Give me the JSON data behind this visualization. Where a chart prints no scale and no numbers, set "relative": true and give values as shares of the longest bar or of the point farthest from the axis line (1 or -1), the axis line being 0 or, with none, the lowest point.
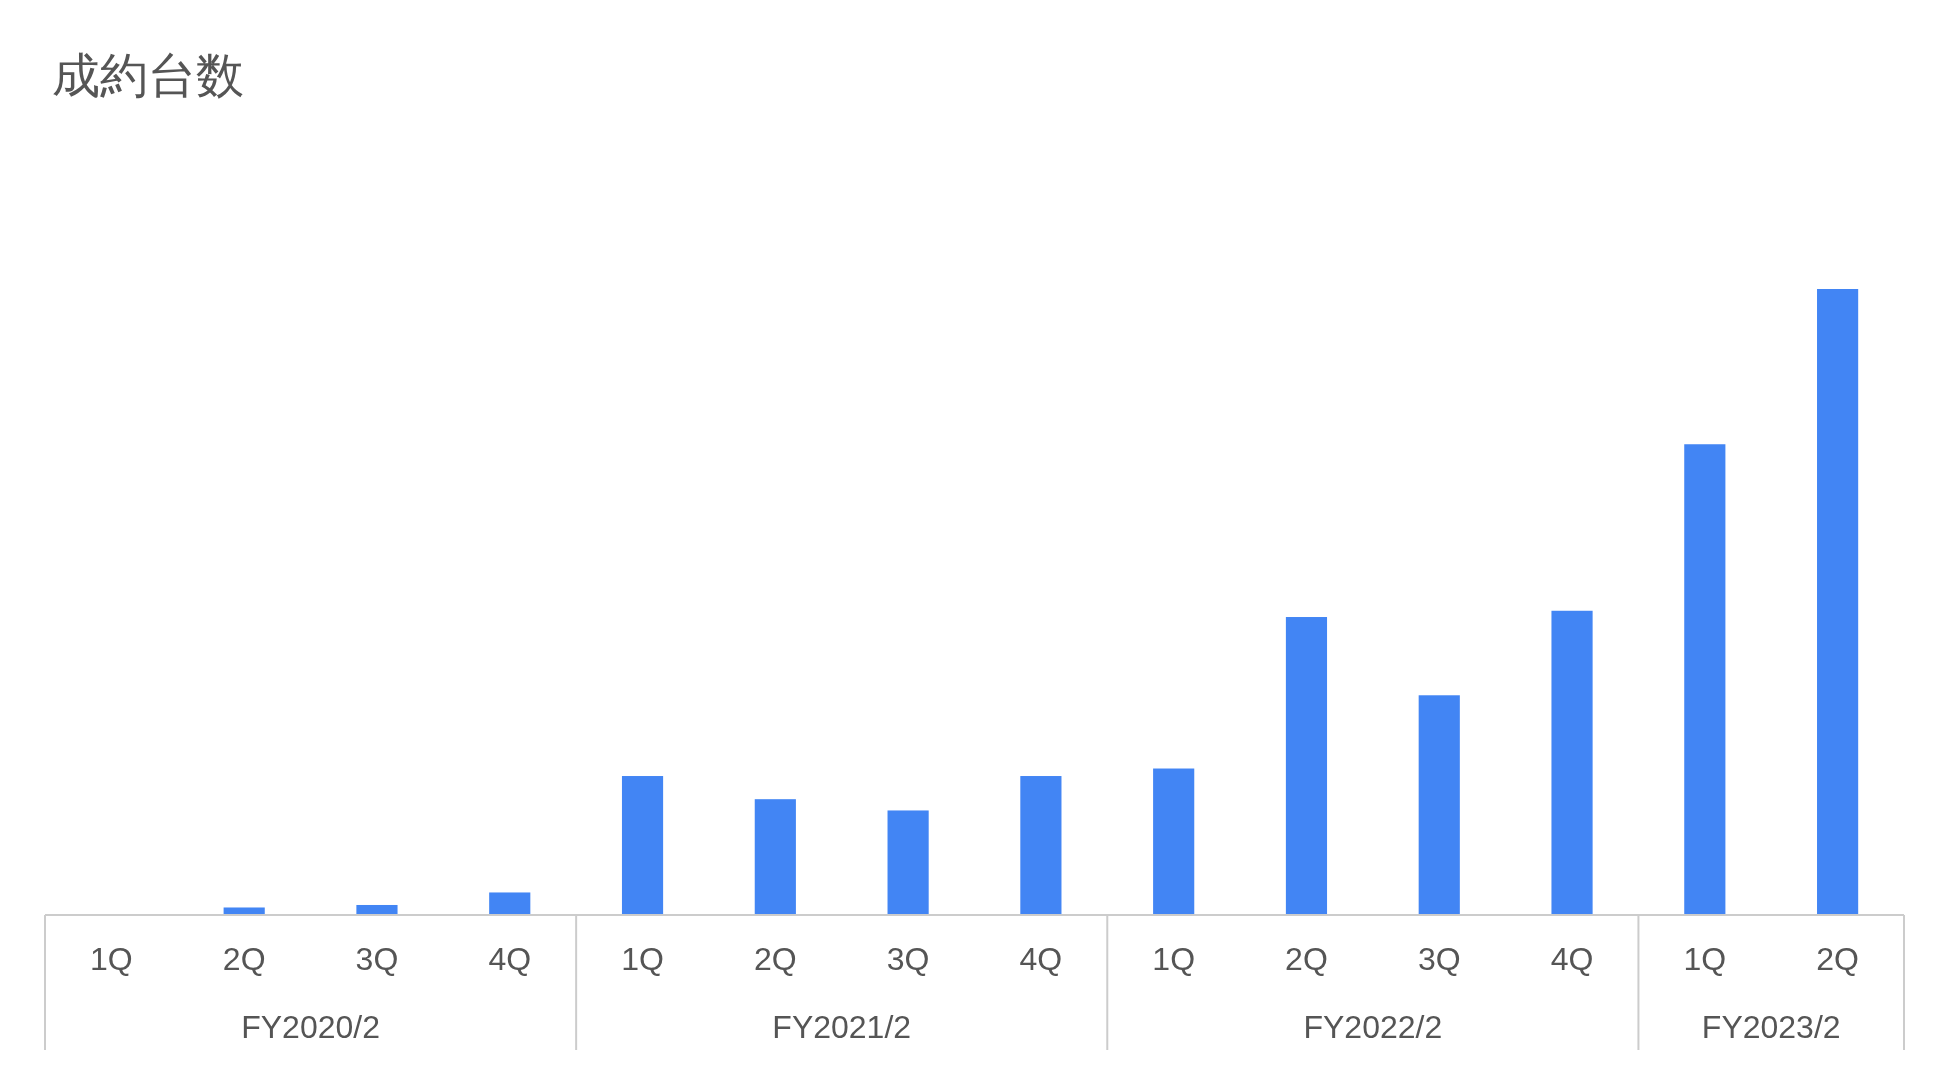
{
  "chart_data": {
    "type": "bar",
    "title": "成約台数",
    "relative": true,
    "color": "#4285f4",
    "categories": [
      "1Q",
      "2Q",
      "3Q",
      "4Q",
      "1Q",
      "2Q",
      "3Q",
      "4Q",
      "1Q",
      "2Q",
      "3Q",
      "4Q",
      "1Q",
      "2Q"
    ],
    "values": [
      0,
      0.012,
      0.016,
      0.036,
      0.222,
      0.185,
      0.167,
      0.222,
      0.234,
      0.476,
      0.351,
      0.486,
      0.752,
      1
    ],
    "annotations": [
      "FY2020/2",
      "FY2021/2",
      "FY2022/2",
      "FY2023/2"
    ],
    "grid": false
  }
}
